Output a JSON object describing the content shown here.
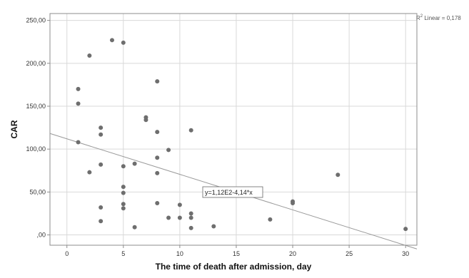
{
  "chart_data": {
    "type": "scatter",
    "title": "",
    "xlabel": "The time of death after admission, day",
    "ylabel": "CAR",
    "xlim": [
      -1.5,
      31
    ],
    "ylim": [
      -12,
      258
    ],
    "x_ticks": [
      0,
      5,
      10,
      15,
      20,
      25,
      30
    ],
    "x_tick_labels": [
      "0",
      "5",
      "10",
      "15",
      "20",
      "25",
      "30"
    ],
    "y_ticks": [
      0,
      50,
      100,
      150,
      200,
      250
    ],
    "y_tick_labels": [
      ",00",
      "50,00",
      "100,00",
      "150,00",
      "200,00",
      "250,00"
    ],
    "grid": true,
    "point_color": "#6e6e6e",
    "fit_line_color": "#9a9a9a",
    "fit_line": {
      "intercept": 112,
      "slope": -4.14
    },
    "fit_equation_label": "y=1,12E2-4,14*x",
    "r2_prefix": "R",
    "r2_sup": "2",
    "r2_suffix": " Linear = 0,178",
    "points": [
      [
        1,
        170
      ],
      [
        1,
        153
      ],
      [
        1,
        108
      ],
      [
        2,
        209
      ],
      [
        2,
        73
      ],
      [
        3,
        125
      ],
      [
        3,
        117
      ],
      [
        3,
        82
      ],
      [
        3,
        32
      ],
      [
        3,
        16
      ],
      [
        4,
        227
      ],
      [
        5,
        224
      ],
      [
        5,
        80
      ],
      [
        5,
        56
      ],
      [
        5,
        49
      ],
      [
        5,
        36
      ],
      [
        5,
        31
      ],
      [
        6,
        83
      ],
      [
        6,
        9
      ],
      [
        7,
        137
      ],
      [
        7,
        134
      ],
      [
        8,
        179
      ],
      [
        8,
        120
      ],
      [
        8,
        90
      ],
      [
        8,
        72
      ],
      [
        8,
        37
      ],
      [
        9,
        99
      ],
      [
        9,
        20
      ],
      [
        10,
        35
      ],
      [
        10,
        20
      ],
      [
        11,
        122
      ],
      [
        11,
        25
      ],
      [
        11,
        20
      ],
      [
        11,
        8
      ],
      [
        13,
        10
      ],
      [
        18,
        18
      ],
      [
        20,
        39
      ],
      [
        20,
        37
      ],
      [
        24,
        70
      ],
      [
        30,
        7
      ]
    ]
  }
}
